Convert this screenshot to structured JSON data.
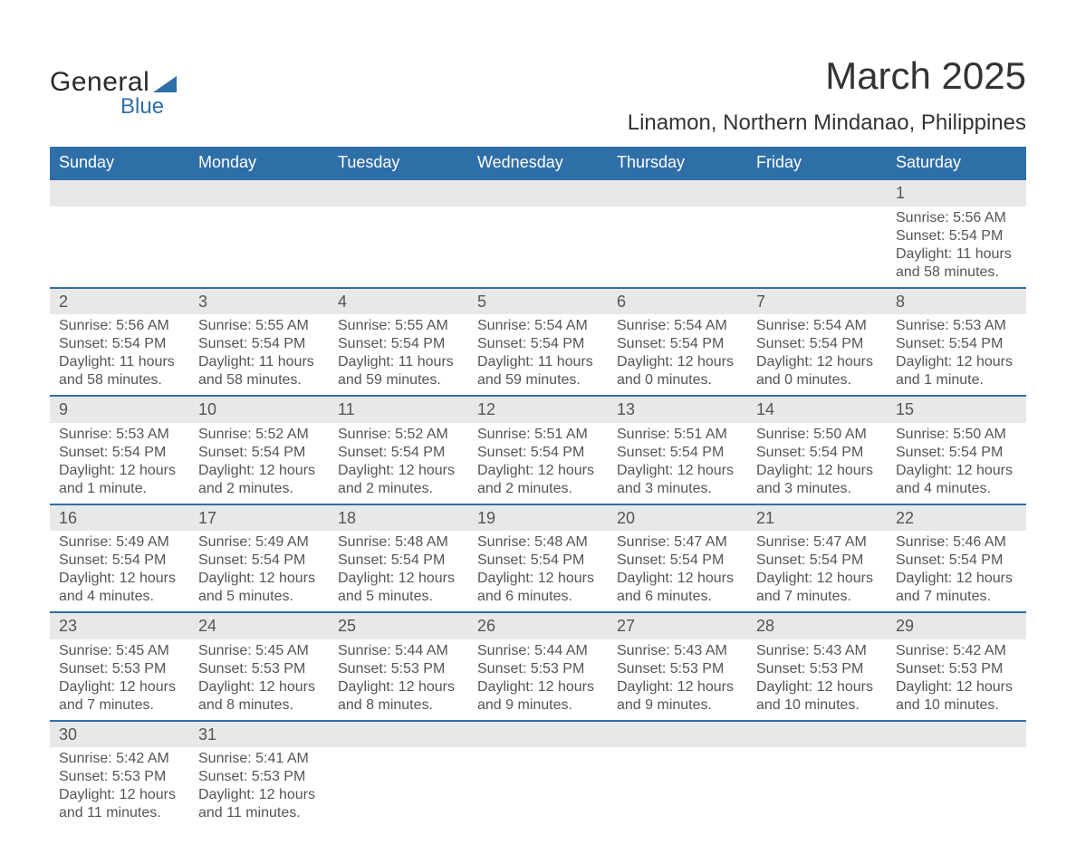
{
  "logo": {
    "word1": "General",
    "word2": "Blue"
  },
  "title": "March 2025",
  "location": "Linamon, Northern Mindanao, Philippines",
  "colors": {
    "header_bg": "#2f6fa8",
    "header_fg": "#ffffff",
    "daynum_bg": "#e8e8e8",
    "text": "#555555",
    "border": "#2f6fa8",
    "page_bg": "#ffffff"
  },
  "typography": {
    "title_fontsize": 42,
    "subtitle_fontsize": 24,
    "dayheader_fontsize": 18,
    "body_fontsize": 16
  },
  "day_headers": [
    "Sunday",
    "Monday",
    "Tuesday",
    "Wednesday",
    "Thursday",
    "Friday",
    "Saturday"
  ],
  "weeks": [
    [
      null,
      null,
      null,
      null,
      null,
      null,
      {
        "n": "1",
        "sunrise": "5:56 AM",
        "sunset": "5:54 PM",
        "daylight": "11 hours and 58 minutes."
      }
    ],
    [
      {
        "n": "2",
        "sunrise": "5:56 AM",
        "sunset": "5:54 PM",
        "daylight": "11 hours and 58 minutes."
      },
      {
        "n": "3",
        "sunrise": "5:55 AM",
        "sunset": "5:54 PM",
        "daylight": "11 hours and 58 minutes."
      },
      {
        "n": "4",
        "sunrise": "5:55 AM",
        "sunset": "5:54 PM",
        "daylight": "11 hours and 59 minutes."
      },
      {
        "n": "5",
        "sunrise": "5:54 AM",
        "sunset": "5:54 PM",
        "daylight": "11 hours and 59 minutes."
      },
      {
        "n": "6",
        "sunrise": "5:54 AM",
        "sunset": "5:54 PM",
        "daylight": "12 hours and 0 minutes."
      },
      {
        "n": "7",
        "sunrise": "5:54 AM",
        "sunset": "5:54 PM",
        "daylight": "12 hours and 0 minutes."
      },
      {
        "n": "8",
        "sunrise": "5:53 AM",
        "sunset": "5:54 PM",
        "daylight": "12 hours and 1 minute."
      }
    ],
    [
      {
        "n": "9",
        "sunrise": "5:53 AM",
        "sunset": "5:54 PM",
        "daylight": "12 hours and 1 minute."
      },
      {
        "n": "10",
        "sunrise": "5:52 AM",
        "sunset": "5:54 PM",
        "daylight": "12 hours and 2 minutes."
      },
      {
        "n": "11",
        "sunrise": "5:52 AM",
        "sunset": "5:54 PM",
        "daylight": "12 hours and 2 minutes."
      },
      {
        "n": "12",
        "sunrise": "5:51 AM",
        "sunset": "5:54 PM",
        "daylight": "12 hours and 2 minutes."
      },
      {
        "n": "13",
        "sunrise": "5:51 AM",
        "sunset": "5:54 PM",
        "daylight": "12 hours and 3 minutes."
      },
      {
        "n": "14",
        "sunrise": "5:50 AM",
        "sunset": "5:54 PM",
        "daylight": "12 hours and 3 minutes."
      },
      {
        "n": "15",
        "sunrise": "5:50 AM",
        "sunset": "5:54 PM",
        "daylight": "12 hours and 4 minutes."
      }
    ],
    [
      {
        "n": "16",
        "sunrise": "5:49 AM",
        "sunset": "5:54 PM",
        "daylight": "12 hours and 4 minutes."
      },
      {
        "n": "17",
        "sunrise": "5:49 AM",
        "sunset": "5:54 PM",
        "daylight": "12 hours and 5 minutes."
      },
      {
        "n": "18",
        "sunrise": "5:48 AM",
        "sunset": "5:54 PM",
        "daylight": "12 hours and 5 minutes."
      },
      {
        "n": "19",
        "sunrise": "5:48 AM",
        "sunset": "5:54 PM",
        "daylight": "12 hours and 6 minutes."
      },
      {
        "n": "20",
        "sunrise": "5:47 AM",
        "sunset": "5:54 PM",
        "daylight": "12 hours and 6 minutes."
      },
      {
        "n": "21",
        "sunrise": "5:47 AM",
        "sunset": "5:54 PM",
        "daylight": "12 hours and 7 minutes."
      },
      {
        "n": "22",
        "sunrise": "5:46 AM",
        "sunset": "5:54 PM",
        "daylight": "12 hours and 7 minutes."
      }
    ],
    [
      {
        "n": "23",
        "sunrise": "5:45 AM",
        "sunset": "5:53 PM",
        "daylight": "12 hours and 7 minutes."
      },
      {
        "n": "24",
        "sunrise": "5:45 AM",
        "sunset": "5:53 PM",
        "daylight": "12 hours and 8 minutes."
      },
      {
        "n": "25",
        "sunrise": "5:44 AM",
        "sunset": "5:53 PM",
        "daylight": "12 hours and 8 minutes."
      },
      {
        "n": "26",
        "sunrise": "5:44 AM",
        "sunset": "5:53 PM",
        "daylight": "12 hours and 9 minutes."
      },
      {
        "n": "27",
        "sunrise": "5:43 AM",
        "sunset": "5:53 PM",
        "daylight": "12 hours and 9 minutes."
      },
      {
        "n": "28",
        "sunrise": "5:43 AM",
        "sunset": "5:53 PM",
        "daylight": "12 hours and 10 minutes."
      },
      {
        "n": "29",
        "sunrise": "5:42 AM",
        "sunset": "5:53 PM",
        "daylight": "12 hours and 10 minutes."
      }
    ],
    [
      {
        "n": "30",
        "sunrise": "5:42 AM",
        "sunset": "5:53 PM",
        "daylight": "12 hours and 11 minutes."
      },
      {
        "n": "31",
        "sunrise": "5:41 AM",
        "sunset": "5:53 PM",
        "daylight": "12 hours and 11 minutes."
      },
      null,
      null,
      null,
      null,
      null
    ]
  ],
  "labels": {
    "sunrise": "Sunrise: ",
    "sunset": "Sunset: ",
    "daylight": "Daylight: "
  }
}
